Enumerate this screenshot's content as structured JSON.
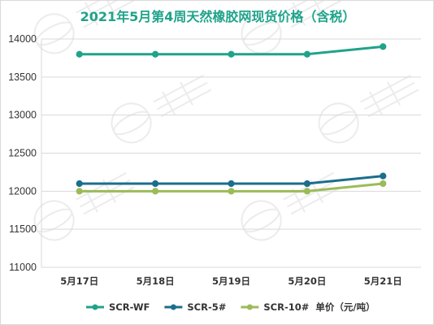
{
  "chart_data": {
    "type": "line",
    "title": "2021年5月第4周天然橡胶网现货价格（含税）",
    "categories": [
      "5月17日",
      "5月18日",
      "5月19日",
      "5月20日",
      "5月21日"
    ],
    "ylim": [
      11000,
      14000
    ],
    "yticks": [
      11000,
      11500,
      12000,
      12500,
      13000,
      13500,
      14000
    ],
    "grid": true,
    "legend_position": "bottom",
    "unit_label": "单价（元/吨）",
    "series": [
      {
        "name": "SCR-WF",
        "color": "#1fa38a",
        "values": [
          13800,
          13800,
          13800,
          13800,
          13900
        ]
      },
      {
        "name": "SCR-5#",
        "color": "#1b6e8c",
        "values": [
          12100,
          12100,
          12100,
          12100,
          12200
        ]
      },
      {
        "name": "SCR-10#",
        "color": "#9bbb59",
        "values": [
          12000,
          12000,
          12000,
          12000,
          12100
        ]
      }
    ]
  }
}
